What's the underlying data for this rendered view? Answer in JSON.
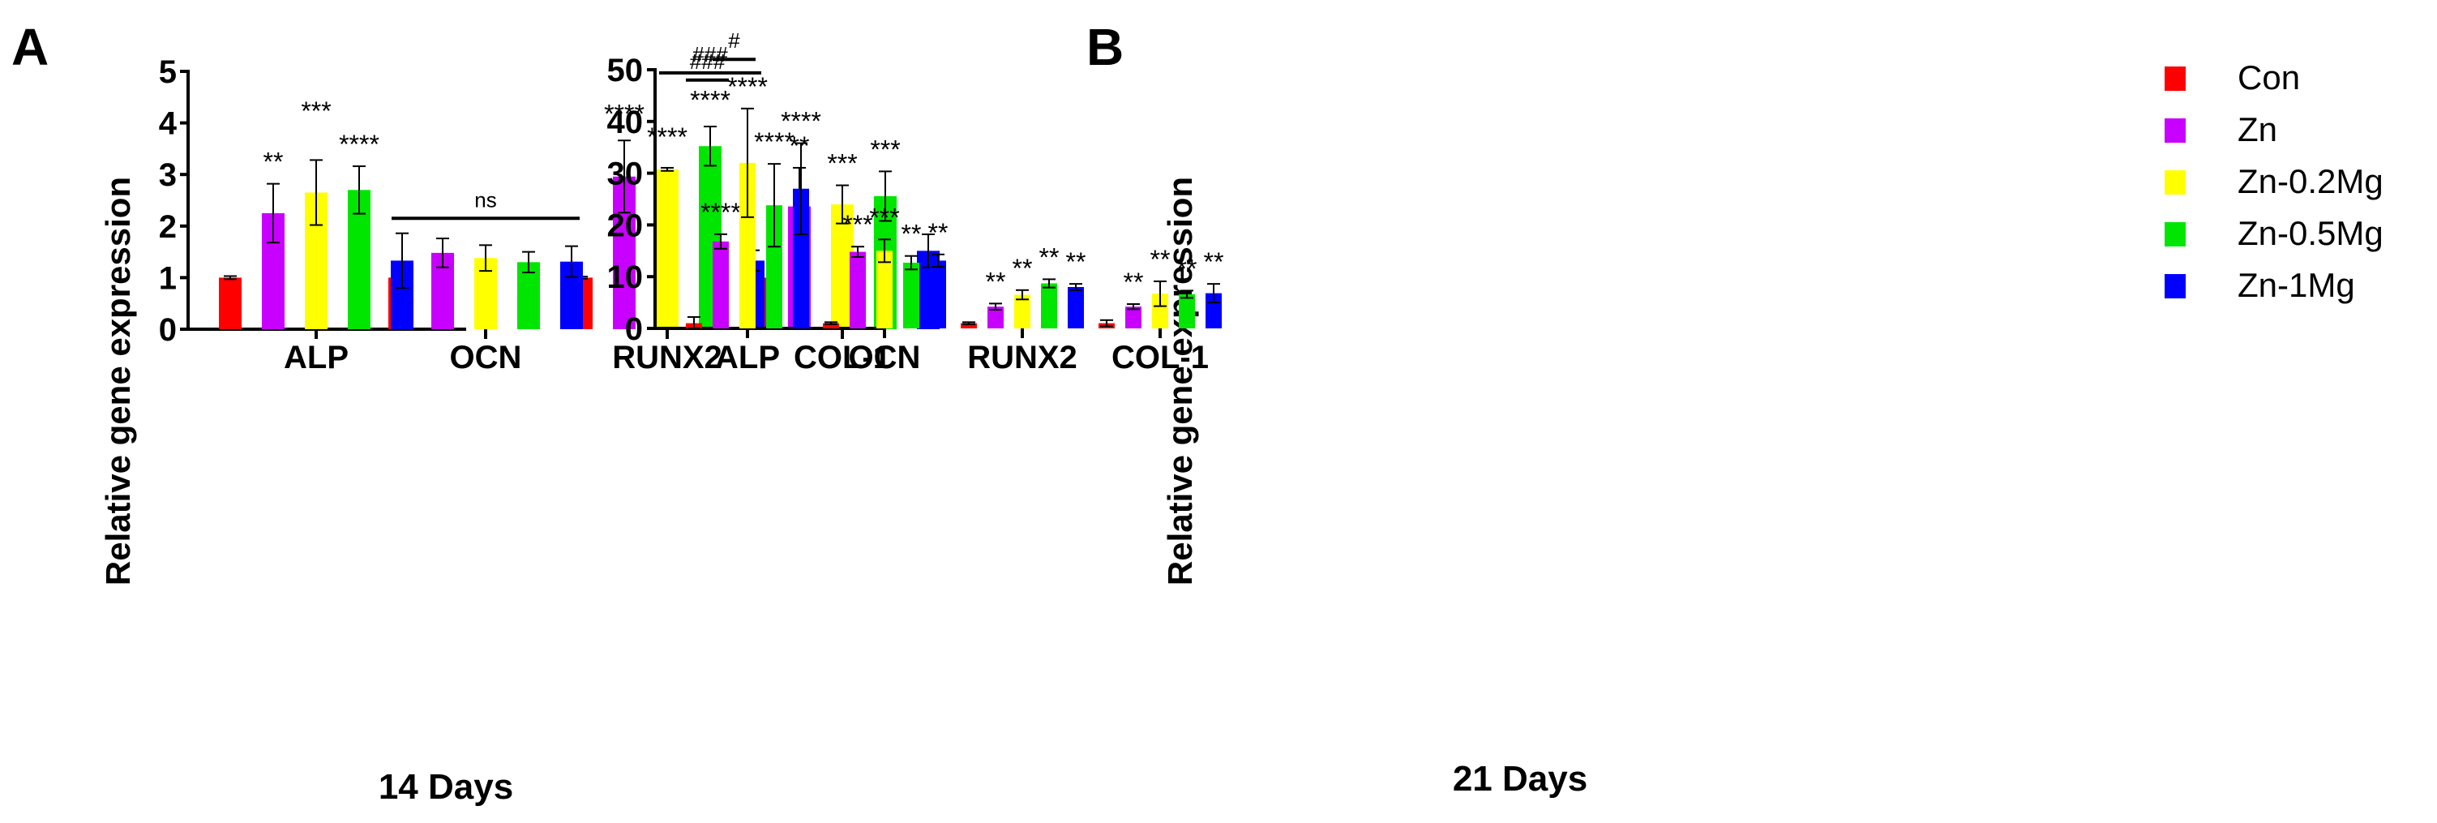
{
  "colors": {
    "Con": "#ff0000",
    "Zn": "#c800ff",
    "Zn-0.2Mg": "#ffff00",
    "Zn-0.5Mg": "#00e600",
    "Zn-1Mg": "#0000ff"
  },
  "legend": [
    "Con",
    "Zn",
    "Zn-0.2Mg",
    "Zn-0.5Mg",
    "Zn-1Mg"
  ],
  "chart_data": [
    {
      "type": "bar",
      "panel": "A",
      "title": "14 Days",
      "ylabel": "Relative gene expression",
      "ylim": [
        0,
        5
      ],
      "yticks": [
        0,
        1,
        2,
        3,
        4,
        5
      ],
      "categories": [
        "ALP",
        "OCN",
        "RUNX2",
        "COL-1"
      ],
      "series": [
        {
          "name": "Con",
          "values": [
            1.0,
            1.0,
            1.0,
            1.0
          ],
          "errors": [
            0.03,
            0.13,
            0.02,
            0.1
          ],
          "labels": [
            "",
            "",
            "",
            ""
          ]
        },
        {
          "name": "Zn",
          "values": [
            2.25,
            1.48,
            2.96,
            2.38
          ],
          "errors": [
            0.57,
            0.28,
            0.7,
            0.75
          ],
          "labels": [
            "**",
            "",
            "****",
            "**"
          ]
        },
        {
          "name": "Zn-0.2Mg",
          "values": [
            2.65,
            1.38,
            3.1,
            2.42
          ],
          "errors": [
            0.63,
            0.25,
            0.03,
            0.37
          ],
          "labels": [
            "***",
            "",
            "****",
            "***"
          ]
        },
        {
          "name": "Zn-0.5Mg",
          "values": [
            2.7,
            1.3,
            3.55,
            2.58
          ],
          "errors": [
            0.46,
            0.2,
            0.38,
            0.48
          ],
          "labels": [
            "****",
            "",
            "****",
            "***"
          ]
        },
        {
          "name": "Zn-1Mg",
          "values": [
            1.33,
            1.31,
            1.33,
            1.52
          ],
          "errors": [
            0.53,
            0.3,
            0.2,
            0.32
          ],
          "labels": [
            "",
            "",
            "",
            ""
          ]
        }
      ],
      "brackets": [
        {
          "label": "ns",
          "category": "OCN",
          "from": 0,
          "to": 4,
          "y": 2.15
        },
        {
          "label": "###",
          "category": "RUNX2",
          "from": 2,
          "to": 4,
          "y": 4.97
        }
      ]
    },
    {
      "type": "bar",
      "panel": "B",
      "title": "21 Days",
      "ylabel": "Relative gene expression",
      "ylim": [
        0,
        50
      ],
      "yticks": [
        0,
        10,
        20,
        30,
        40,
        50
      ],
      "categories": [
        "ALP",
        "OCN",
        "RUNX2",
        "COL-1"
      ],
      "series": [
        {
          "name": "Con",
          "values": [
            1.0,
            1.0,
            1.0,
            1.0
          ],
          "errors": [
            1.2,
            0.2,
            0.2,
            0.6
          ],
          "labels": [
            "",
            "",
            "",
            ""
          ]
        },
        {
          "name": "Zn",
          "values": [
            16.8,
            14.8,
            4.2,
            4.2
          ],
          "errors": [
            1.4,
            1.0,
            0.6,
            0.5
          ],
          "labels": [
            "****",
            "***",
            "**",
            "**"
          ]
        },
        {
          "name": "Zn-0.2Mg",
          "values": [
            32.0,
            15.0,
            6.5,
            6.7
          ],
          "errors": [
            10.5,
            2.2,
            0.9,
            2.4
          ],
          "labels": [
            "****",
            "***",
            "**",
            "**"
          ]
        },
        {
          "name": "Zn-0.5Mg",
          "values": [
            23.8,
            12.7,
            8.7,
            6.6
          ],
          "errors": [
            8.0,
            1.3,
            0.8,
            0.7
          ],
          "labels": [
            "****",
            "**",
            "**",
            "**"
          ]
        },
        {
          "name": "Zn-1Mg",
          "values": [
            27.0,
            13.1,
            8.0,
            6.8
          ],
          "errors": [
            8.8,
            1.2,
            0.6,
            1.8
          ],
          "labels": [
            "****",
            "**",
            "**",
            "**"
          ]
        }
      ],
      "brackets": [
        {
          "label": "###",
          "category": "ALP",
          "from": 0,
          "to": 1,
          "y": 48.0
        },
        {
          "label": "#",
          "category": "ALP",
          "from": 1,
          "to": 2,
          "y": 52.0
        }
      ]
    }
  ]
}
